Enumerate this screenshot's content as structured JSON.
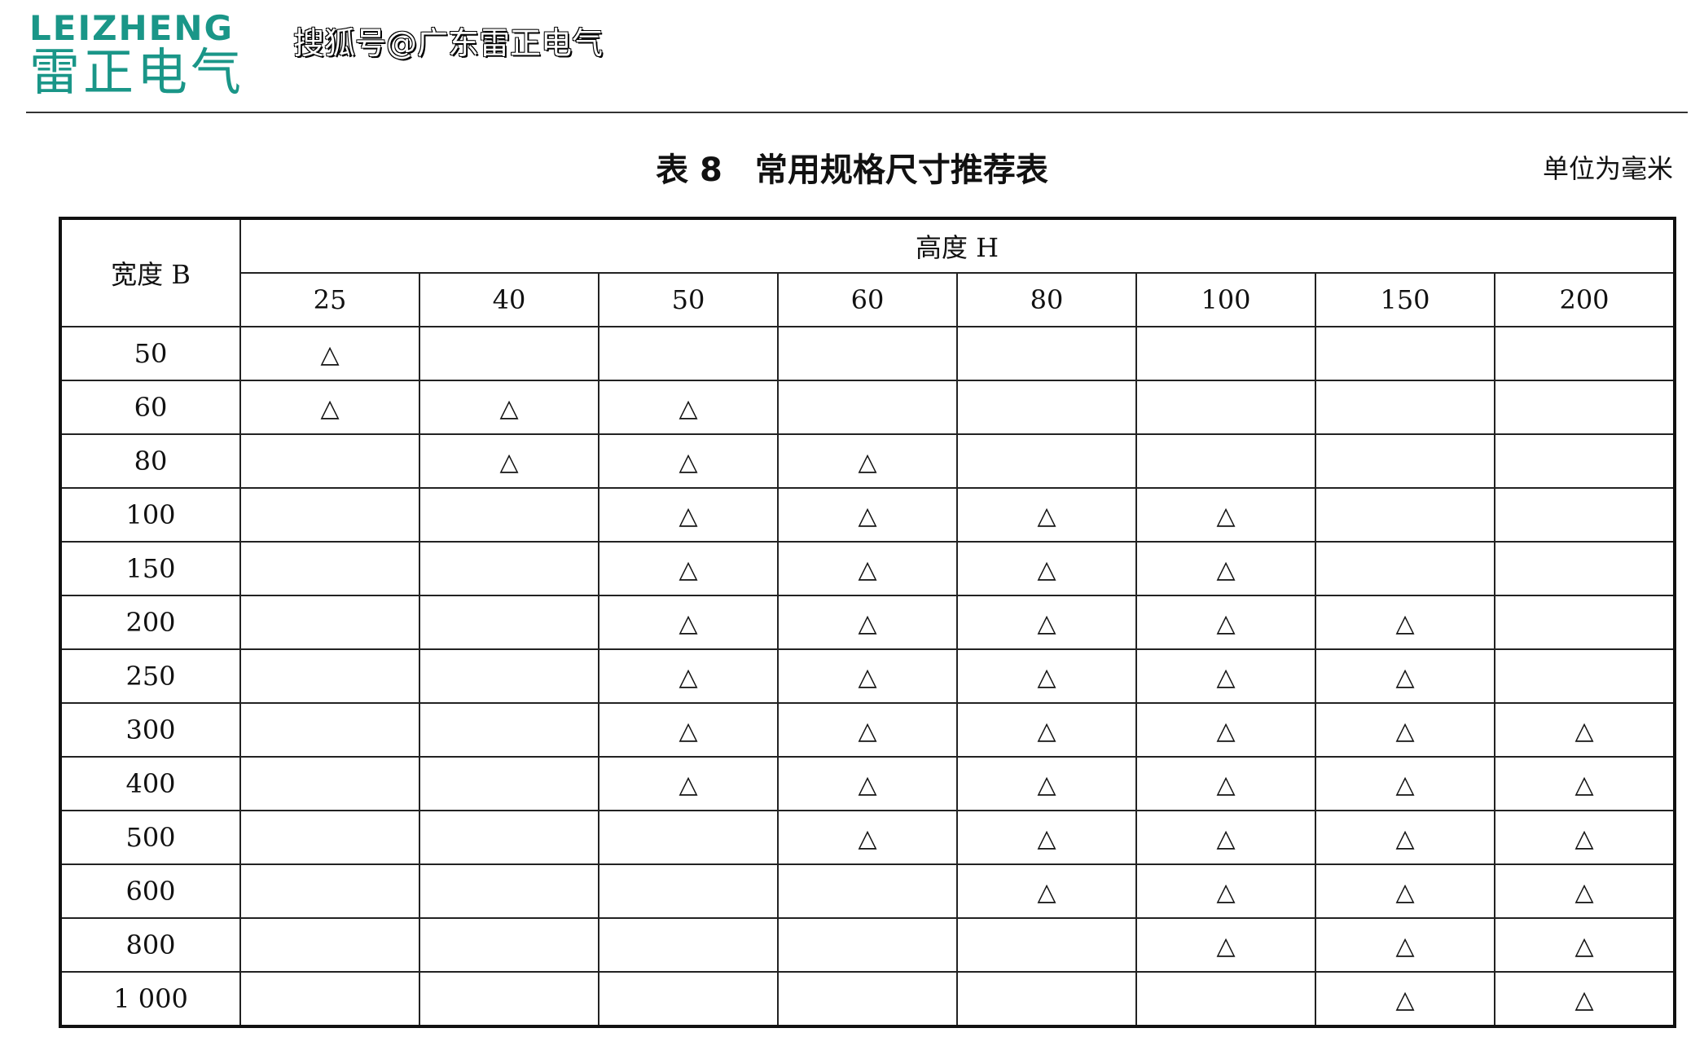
{
  "logo": {
    "en": "LEIZHENG",
    "cn": "雷正电气"
  },
  "watermark": "搜狐号@广东雷正电气",
  "title": "表 8　常用规格尺寸推荐表",
  "unit": "单位为毫米",
  "table": {
    "row_header": "宽度 B",
    "col_group_header": "高度 H",
    "columns": [
      "25",
      "40",
      "50",
      "60",
      "80",
      "100",
      "150",
      "200"
    ],
    "mark": "△",
    "rows": [
      {
        "width": "50",
        "marks": [
          1,
          0,
          0,
          0,
          0,
          0,
          0,
          0
        ]
      },
      {
        "width": "60",
        "marks": [
          1,
          1,
          1,
          0,
          0,
          0,
          0,
          0
        ]
      },
      {
        "width": "80",
        "marks": [
          0,
          1,
          1,
          1,
          0,
          0,
          0,
          0
        ]
      },
      {
        "width": "100",
        "marks": [
          0,
          0,
          1,
          1,
          1,
          1,
          0,
          0
        ]
      },
      {
        "width": "150",
        "marks": [
          0,
          0,
          1,
          1,
          1,
          1,
          0,
          0
        ]
      },
      {
        "width": "200",
        "marks": [
          0,
          0,
          1,
          1,
          1,
          1,
          1,
          0
        ]
      },
      {
        "width": "250",
        "marks": [
          0,
          0,
          1,
          1,
          1,
          1,
          1,
          0
        ]
      },
      {
        "width": "300",
        "marks": [
          0,
          0,
          1,
          1,
          1,
          1,
          1,
          1
        ]
      },
      {
        "width": "400",
        "marks": [
          0,
          0,
          1,
          1,
          1,
          1,
          1,
          1
        ]
      },
      {
        "width": "500",
        "marks": [
          0,
          0,
          0,
          1,
          1,
          1,
          1,
          1
        ]
      },
      {
        "width": "600",
        "marks": [
          0,
          0,
          0,
          0,
          1,
          1,
          1,
          1
        ]
      },
      {
        "width": "800",
        "marks": [
          0,
          0,
          0,
          0,
          0,
          1,
          1,
          1
        ]
      },
      {
        "width": "1 000",
        "marks": [
          0,
          0,
          0,
          0,
          0,
          0,
          1,
          1
        ]
      }
    ]
  }
}
